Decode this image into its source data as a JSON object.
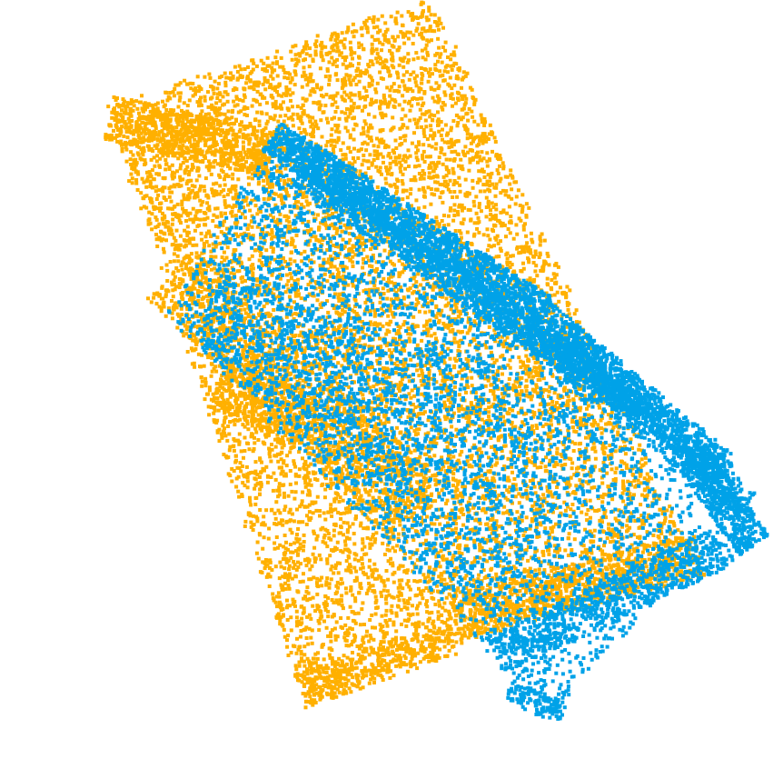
{
  "scene": {
    "description_kind": "point-cloud-registration-view",
    "background_color": "#ffffff",
    "clouds": [
      {
        "id": "source",
        "color": "#ffb000"
      },
      {
        "id": "target",
        "color": "#00a2e8"
      }
    ]
  }
}
